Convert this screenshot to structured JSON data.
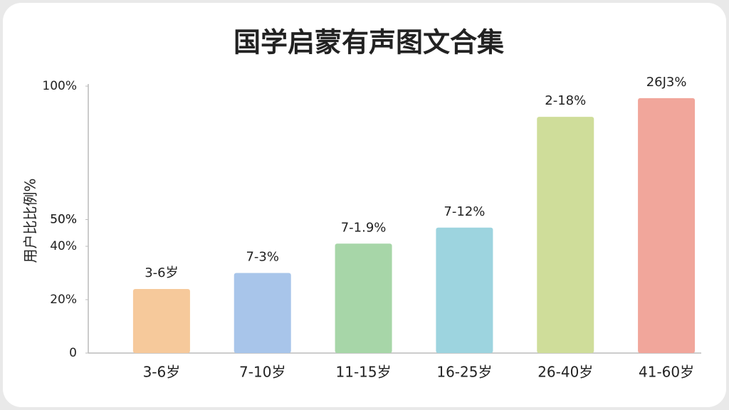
{
  "chart_data": {
    "type": "bar",
    "title": "国学启蒙有声图文合集",
    "y_label": "用户比比例%",
    "categories": [
      "3-6岁",
      "7-10岁",
      "11-15岁",
      "16-25岁",
      "26-40岁",
      "41-60岁"
    ],
    "values": [
      24,
      30,
      41,
      47,
      88.5,
      95.5
    ],
    "annotations": [
      "3-6岁",
      "7-3%",
      "7-1.9%",
      "7-12%",
      "2-18%",
      "26J3%"
    ],
    "colors": [
      "#f6c99b",
      "#a8c5ea",
      "#a7d6a8",
      "#9dd4df",
      "#cfdd9a",
      "#f1a69b"
    ],
    "ylim": [
      0,
      100
    ],
    "yticks": [
      0,
      {
        "value": 20,
        "label": "20%"
      },
      {
        "value": 40,
        "label": "40%"
      },
      {
        "value": 50,
        "label": "50%"
      },
      {
        "value": 50,
        "label": "50%"
      },
      {
        "value": 100,
        "label": "100%"
      }
    ],
    "grid": false
  }
}
